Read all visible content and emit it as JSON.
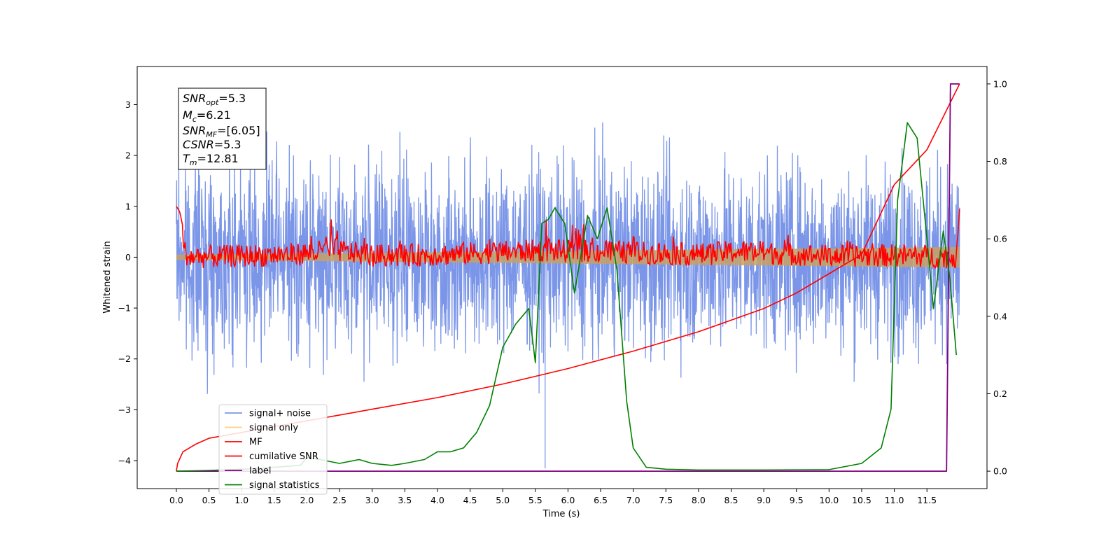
{
  "chart_data": {
    "type": "line",
    "xlabel": "Time (s)",
    "ylabel": "Whitened strain",
    "xlim": [
      -0.6,
      12.42
    ],
    "ylim": [
      -4.55,
      3.75
    ],
    "y2lim": [
      -0.045,
      1.045
    ],
    "x_ticks": [
      "0.0",
      "0.5",
      "1.0",
      "1.5",
      "2.0",
      "2.5",
      "3.0",
      "3.5",
      "4.0",
      "4.5",
      "5.0",
      "5.5",
      "6.0",
      "6.5",
      "7.0",
      "7.5",
      "8.0",
      "8.5",
      "9.0",
      "9.5",
      "10.0",
      "10.5",
      "11.0",
      "11.5"
    ],
    "y_ticks": [
      "3",
      "2",
      "1",
      "0",
      "−1",
      "−2",
      "−3",
      "−4"
    ],
    "y2_ticks": [
      "1.0",
      "0.8",
      "0.6",
      "0.4",
      "0.2",
      "0.0"
    ],
    "annotation": [
      {
        "var": "SNR",
        "sub": "opt",
        "text": "=5.3"
      },
      {
        "var": "M",
        "sub": "c",
        "text": "=6.21"
      },
      {
        "var": "SNR",
        "sub": "MF",
        "text": "=[6.05]"
      },
      {
        "var": "CSNR",
        "sub": "",
        "text": "=5.3"
      },
      {
        "var": "T",
        "sub": "m",
        "text": "=12.81"
      }
    ],
    "legend_position": "lower-left",
    "legend": [
      {
        "label": "signal+ noise",
        "color": "#7b96e8"
      },
      {
        "label": "signal only",
        "color": "#ffd27f"
      },
      {
        "label": "MF",
        "color": "#ff0000"
      },
      {
        "label": "cumilative SNR",
        "color": "#ff0000"
      },
      {
        "label": "label",
        "color": "#800080"
      },
      {
        "label": "signal statistics",
        "color": "#008000"
      }
    ],
    "series": [
      {
        "name": "signal+ noise",
        "axis": "left",
        "color": "#7b96e8",
        "envelope": {
          "x_start": 0.0,
          "x_end": 12.0,
          "amplitude": 1.1
        },
        "outlier_points": [
          [
            5.65,
            -4.15
          ]
        ]
      },
      {
        "name": "signal only",
        "axis": "left",
        "color": "#c8a064",
        "envelope": {
          "x_start": 0.0,
          "x_end": 12.0,
          "amp_start": 0.05,
          "amp_end": 0.2
        }
      },
      {
        "name": "MF",
        "axis": "left",
        "color": "#ff0000",
        "x": [
          0.0,
          0.05,
          0.2,
          1.0,
          1.9,
          2.45,
          2.5,
          3.0,
          4.0,
          5.7,
          6.0,
          6.2,
          8.0,
          8.6,
          10.0,
          11.0,
          11.95,
          12.0
        ],
        "y": [
          1.0,
          0.9,
          0.0,
          0.1,
          0.25,
          0.6,
          0.5,
          0.1,
          0.2,
          0.55,
          0.45,
          0.5,
          0.2,
          0.45,
          0.1,
          0.15,
          0.0,
          0.95
        ]
      },
      {
        "name": "cumilative SNR",
        "axis": "right",
        "color": "#ff0000",
        "x": [
          0.0,
          0.02,
          0.1,
          0.3,
          0.5,
          1.0,
          1.5,
          2.0,
          3.0,
          4.0,
          5.0,
          5.5,
          6.0,
          7.0,
          8.0,
          9.0,
          9.5,
          10.0,
          10.5,
          11.0,
          11.5,
          12.0
        ],
        "y": [
          0.0,
          0.02,
          0.05,
          0.07,
          0.085,
          0.1,
          0.115,
          0.13,
          0.16,
          0.19,
          0.225,
          0.245,
          0.265,
          0.31,
          0.36,
          0.42,
          0.46,
          0.51,
          0.56,
          0.74,
          0.83,
          1.0
        ]
      },
      {
        "name": "label",
        "axis": "right",
        "color": "#800080",
        "x": [
          0.0,
          11.8,
          11.86,
          12.0
        ],
        "y": [
          0.0,
          0.0,
          1.0,
          1.0
        ]
      },
      {
        "name": "signal statistics",
        "axis": "right",
        "color": "#008000",
        "x": [
          0.0,
          0.5,
          1.0,
          1.5,
          1.9,
          2.0,
          2.2,
          2.5,
          2.8,
          3.0,
          3.3,
          3.5,
          3.8,
          4.0,
          4.2,
          4.4,
          4.6,
          4.8,
          5.0,
          5.2,
          5.4,
          5.5,
          5.6,
          5.7,
          5.8,
          5.95,
          6.1,
          6.3,
          6.45,
          6.6,
          6.75,
          6.9,
          7.0,
          7.2,
          7.5,
          8.0,
          9.0,
          10.0,
          10.5,
          10.8,
          10.95,
          11.05,
          11.2,
          11.35,
          11.5,
          11.6,
          11.75,
          11.85,
          11.95
        ],
        "y": [
          0.0,
          0.002,
          0.005,
          0.01,
          0.015,
          0.035,
          0.03,
          0.02,
          0.03,
          0.02,
          0.015,
          0.02,
          0.03,
          0.05,
          0.05,
          0.06,
          0.1,
          0.17,
          0.32,
          0.38,
          0.42,
          0.28,
          0.64,
          0.65,
          0.68,
          0.64,
          0.46,
          0.66,
          0.6,
          0.68,
          0.52,
          0.18,
          0.06,
          0.01,
          0.005,
          0.003,
          0.003,
          0.004,
          0.02,
          0.06,
          0.16,
          0.7,
          0.9,
          0.86,
          0.6,
          0.42,
          0.62,
          0.5,
          0.3
        ]
      }
    ]
  }
}
